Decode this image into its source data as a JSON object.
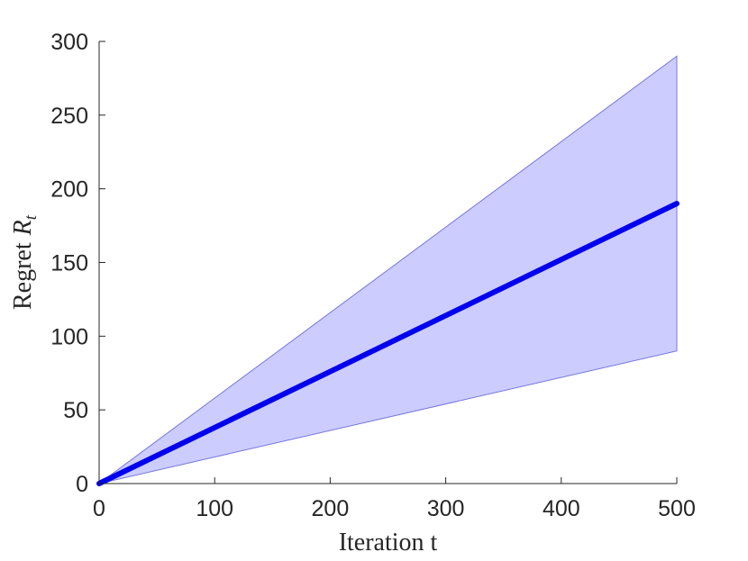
{
  "chart_data": {
    "type": "area",
    "x": [
      0,
      500
    ],
    "series": [
      {
        "values": [
          0,
          190
        ],
        "color": "#0000ee"
      }
    ],
    "band": {
      "lower": [
        0,
        90
      ],
      "upper": [
        0,
        290
      ],
      "fill": "#ccccff",
      "edge": "#7777dd"
    },
    "xlabel": "Iteration t",
    "ylabel_prefix": "Regret",
    "ylabel_symbol": "R",
    "ylabel_subscript": "t",
    "xlim": [
      0,
      500
    ],
    "ylim": [
      0,
      300
    ],
    "xticks": [
      0,
      100,
      200,
      300,
      400,
      500
    ],
    "yticks": [
      0,
      50,
      100,
      150,
      200,
      250,
      300
    ],
    "grid": false,
    "box": false
  }
}
